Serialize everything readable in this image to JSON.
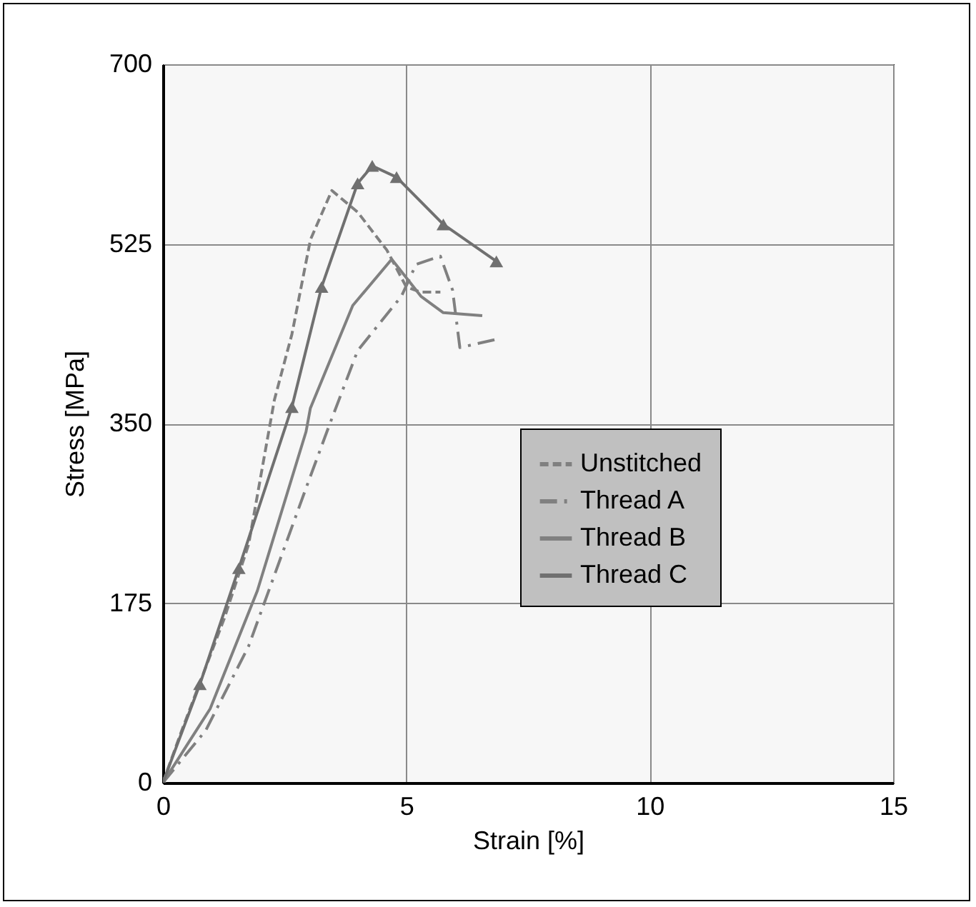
{
  "chart_data": {
    "type": "line",
    "xlabel": "Strain [%]",
    "ylabel": "Stress [MPa]",
    "xlim": [
      0,
      15
    ],
    "ylim": [
      0,
      700
    ],
    "xticks": [
      0,
      5,
      10,
      15
    ],
    "yticks": [
      0,
      175,
      350,
      525,
      700
    ],
    "grid": true,
    "legend": "bottom right",
    "series": [
      {
        "name": "Unstitched",
        "color": "#808080",
        "line_style": "dashed",
        "marker": "none",
        "x": [
          0,
          0.38,
          1.26,
          1.76,
          2.29,
          2.65,
          3.03,
          3.47,
          4.0,
          4.6,
          5.0,
          5.3,
          5.7
        ],
        "values": [
          0,
          50,
          160,
          232,
          373,
          437,
          529,
          577,
          556,
          519,
          483,
          478,
          478
        ]
      },
      {
        "name": "Thread A",
        "color": "#808080",
        "line_style": "dashdot",
        "marker": "none",
        "x": [
          0,
          0.88,
          1.76,
          2.94,
          3.4,
          4.0,
          4.9,
          5.2,
          5.7,
          5.95,
          6.1,
          6.85
        ],
        "values": [
          0,
          51,
          133,
          287,
          346,
          421,
          474,
          505,
          513,
          480,
          424,
          432
        ]
      },
      {
        "name": "Thread B",
        "color": "#808080",
        "line_style": "solid",
        "marker": "none",
        "x": [
          0,
          0.97,
          1.94,
          2.94,
          3.03,
          3.9,
          4.7,
          5.3,
          5.76,
          6.56
        ],
        "values": [
          0,
          72,
          187,
          342,
          365,
          465,
          510,
          474,
          458,
          455
        ]
      },
      {
        "name": "Thread C",
        "color": "#707070",
        "line_style": "solid",
        "marker": "triangle",
        "x": [
          0,
          0.76,
          1.56,
          2.65,
          3.26,
          4.0,
          4.3,
          4.8,
          5.76,
          6.85
        ],
        "values": [
          0,
          96,
          209,
          366,
          483,
          584,
          601,
          590,
          544,
          508
        ]
      }
    ]
  }
}
